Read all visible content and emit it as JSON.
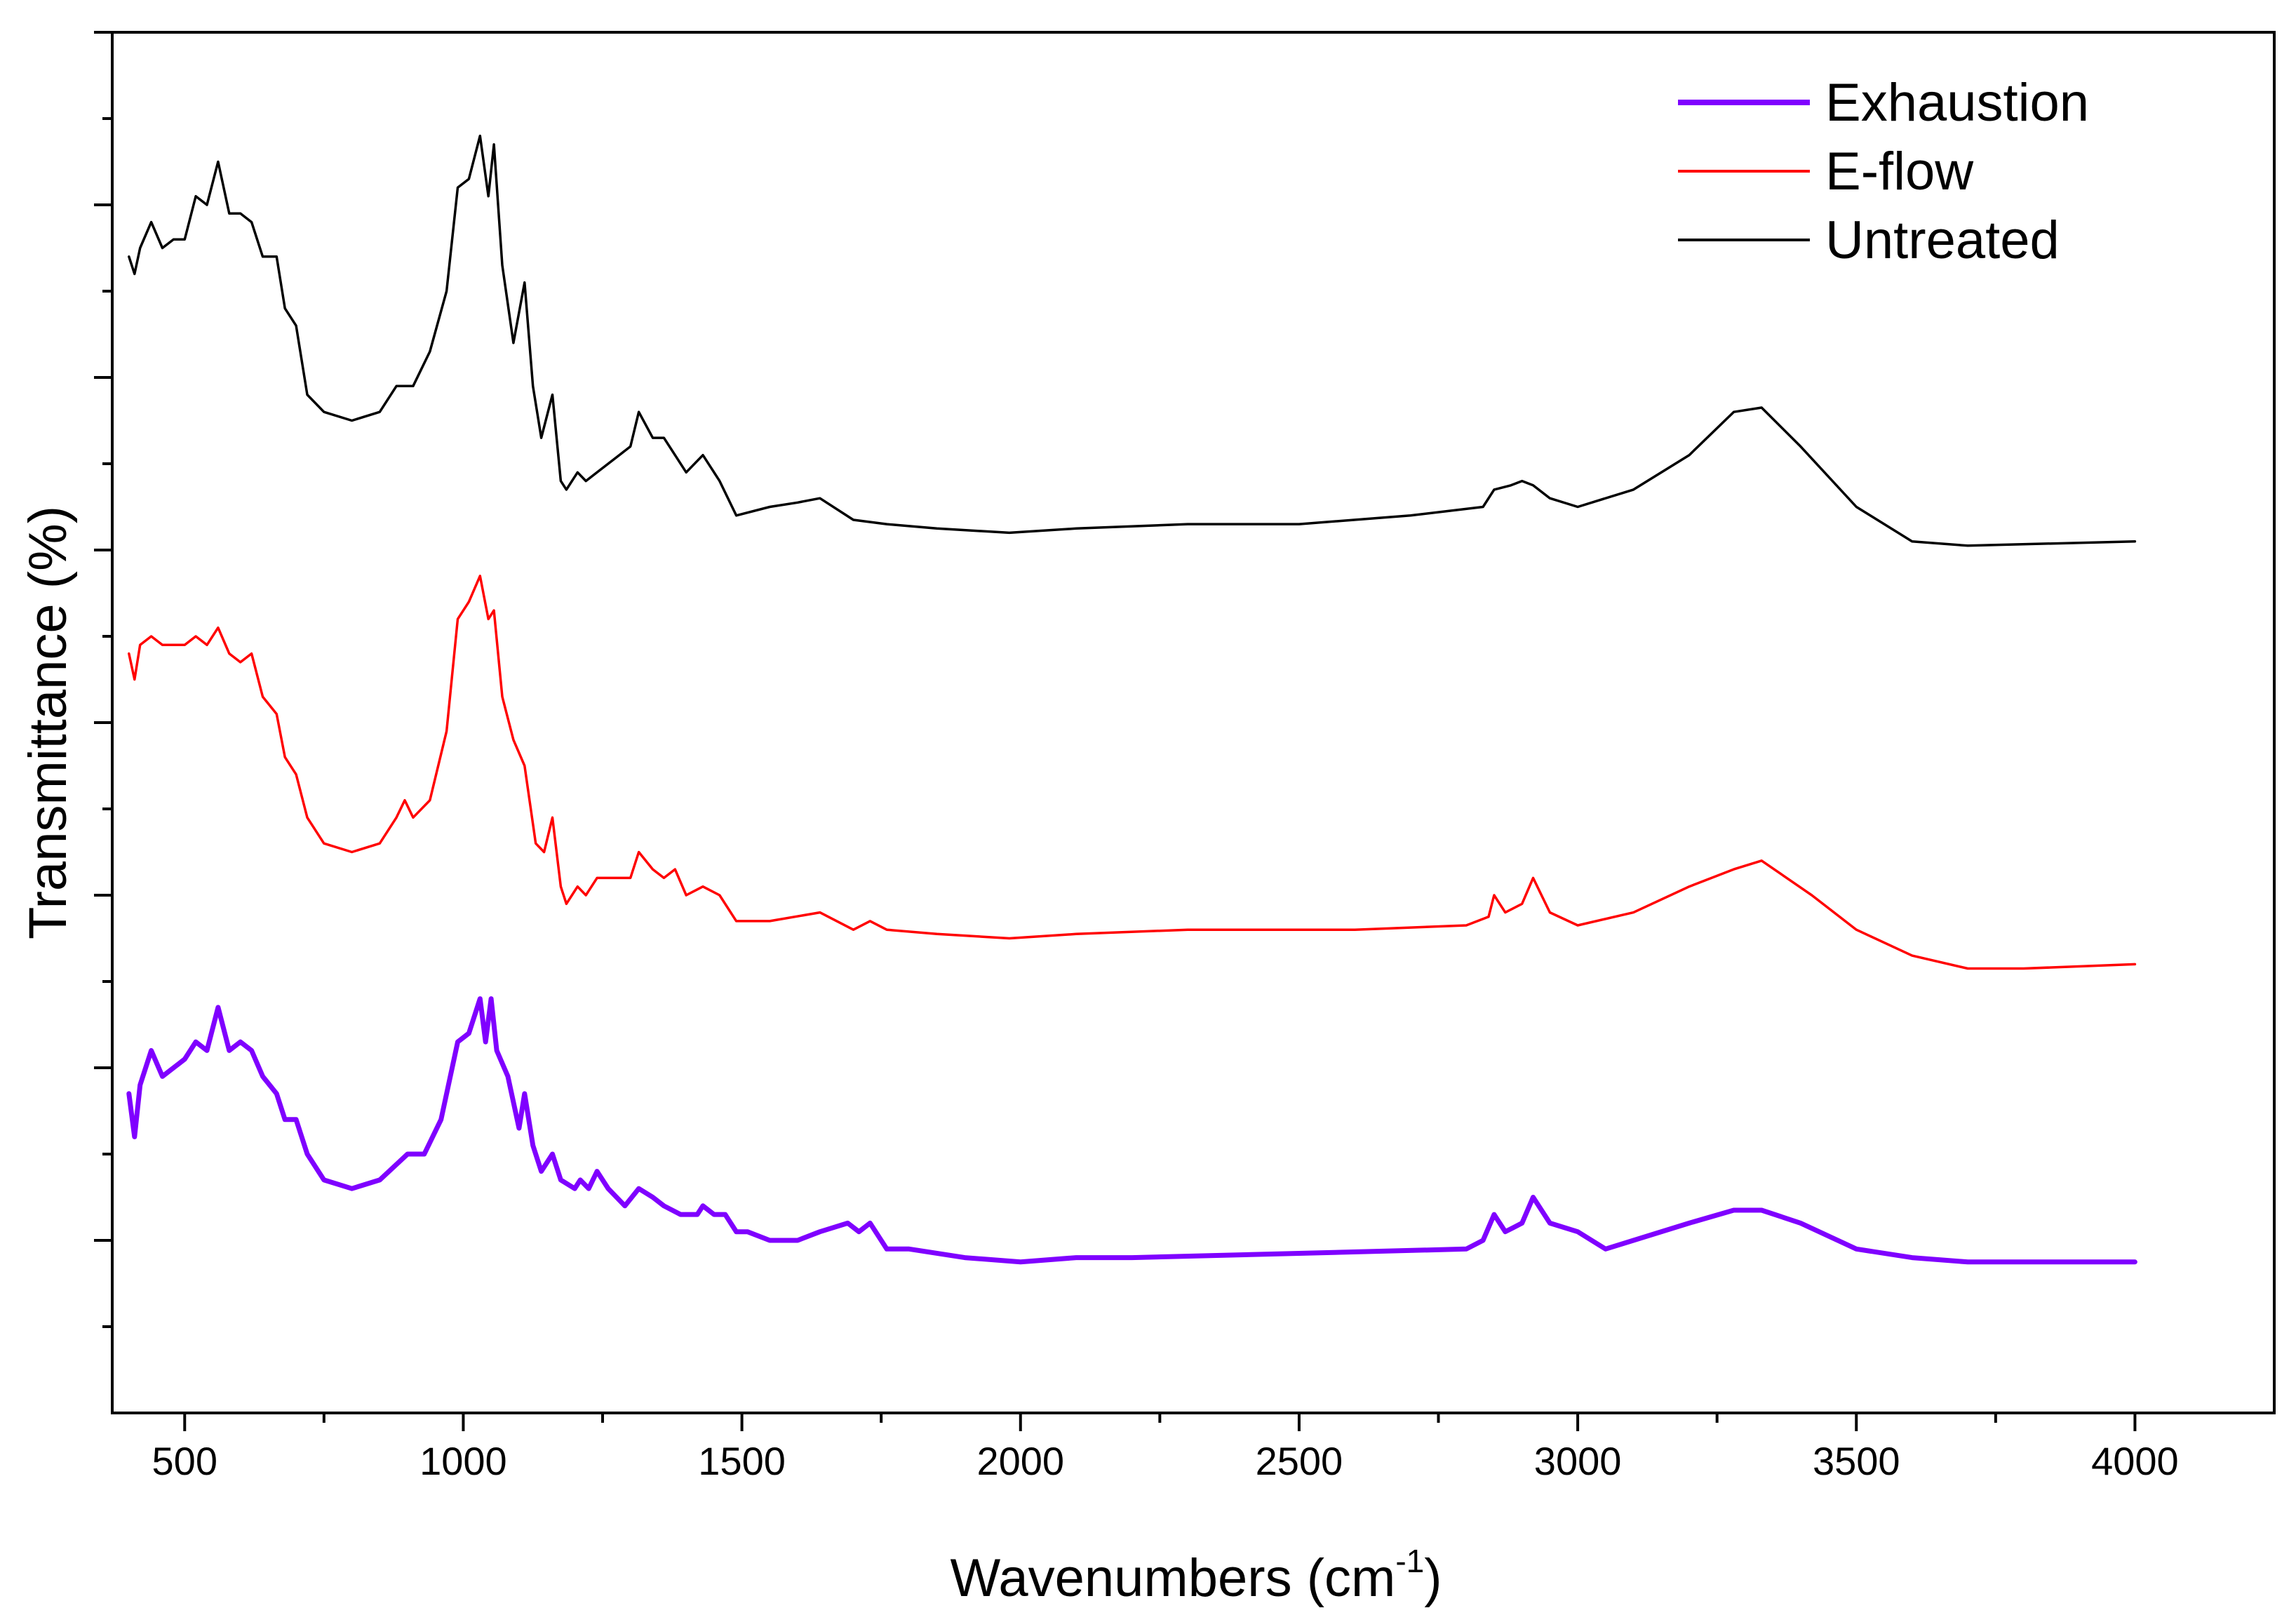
{
  "chart_data": {
    "type": "line",
    "title": "",
    "xlabel": "Wavenumbers (cm",
    "xlabel_sup": "-1",
    "xlabel_close": ")",
    "ylabel": "Transmittance (%)",
    "xlim": [
      370,
      4250
    ],
    "ylim": [
      0,
      16
    ],
    "x_ticks": [
      500,
      1000,
      1500,
      2000,
      2500,
      3000,
      3500,
      4000
    ],
    "y_ticks_major": [
      2,
      4,
      6,
      8,
      10,
      12,
      14,
      16
    ],
    "y_tick_labels_shown": false,
    "grid": false,
    "legend_position": "top-right",
    "series": [
      {
        "name": "Exhaustion",
        "color": "#7f00ff",
        "points": [
          [
            400,
            3.7
          ],
          [
            410,
            3.2
          ],
          [
            420,
            3.8
          ],
          [
            440,
            4.2
          ],
          [
            460,
            3.9
          ],
          [
            480,
            4.0
          ],
          [
            500,
            4.1
          ],
          [
            520,
            4.3
          ],
          [
            540,
            4.2
          ],
          [
            560,
            4.7
          ],
          [
            580,
            4.2
          ],
          [
            600,
            4.3
          ],
          [
            620,
            4.2
          ],
          [
            640,
            3.9
          ],
          [
            665,
            3.7
          ],
          [
            680,
            3.4
          ],
          [
            700,
            3.4
          ],
          [
            720,
            3.0
          ],
          [
            750,
            2.7
          ],
          [
            800,
            2.6
          ],
          [
            850,
            2.7
          ],
          [
            900,
            3.0
          ],
          [
            930,
            3.0
          ],
          [
            960,
            3.4
          ],
          [
            990,
            4.3
          ],
          [
            1010,
            4.4
          ],
          [
            1030,
            4.8
          ],
          [
            1040,
            4.3
          ],
          [
            1050,
            4.8
          ],
          [
            1060,
            4.2
          ],
          [
            1080,
            3.9
          ],
          [
            1100,
            3.3
          ],
          [
            1110,
            3.7
          ],
          [
            1125,
            3.1
          ],
          [
            1140,
            2.8
          ],
          [
            1160,
            3.0
          ],
          [
            1175,
            2.7
          ],
          [
            1200,
            2.6
          ],
          [
            1210,
            2.7
          ],
          [
            1225,
            2.6
          ],
          [
            1240,
            2.8
          ],
          [
            1260,
            2.6
          ],
          [
            1290,
            2.4
          ],
          [
            1315,
            2.6
          ],
          [
            1340,
            2.5
          ],
          [
            1360,
            2.4
          ],
          [
            1390,
            2.3
          ],
          [
            1420,
            2.3
          ],
          [
            1430,
            2.4
          ],
          [
            1450,
            2.3
          ],
          [
            1470,
            2.3
          ],
          [
            1490,
            2.1
          ],
          [
            1510,
            2.1
          ],
          [
            1550,
            2.0
          ],
          [
            1600,
            2.0
          ],
          [
            1640,
            2.1
          ],
          [
            1690,
            2.2
          ],
          [
            1710,
            2.1
          ],
          [
            1730,
            2.2
          ],
          [
            1760,
            1.9
          ],
          [
            1800,
            1.9
          ],
          [
            1900,
            1.8
          ],
          [
            2000,
            1.75
          ],
          [
            2100,
            1.8
          ],
          [
            2200,
            1.8
          ],
          [
            2500,
            1.85
          ],
          [
            2800,
            1.9
          ],
          [
            2830,
            2.0
          ],
          [
            2850,
            2.3
          ],
          [
            2870,
            2.1
          ],
          [
            2900,
            2.2
          ],
          [
            2920,
            2.5
          ],
          [
            2950,
            2.2
          ],
          [
            3000,
            2.1
          ],
          [
            3050,
            1.9
          ],
          [
            3100,
            2.0
          ],
          [
            3200,
            2.2
          ],
          [
            3280,
            2.35
          ],
          [
            3330,
            2.35
          ],
          [
            3400,
            2.2
          ],
          [
            3500,
            1.9
          ],
          [
            3600,
            1.8
          ],
          [
            3700,
            1.75
          ],
          [
            3800,
            1.75
          ],
          [
            4000,
            1.75
          ]
        ]
      },
      {
        "name": "E-flow",
        "color": "#ff0000",
        "points": [
          [
            400,
            8.8
          ],
          [
            410,
            8.5
          ],
          [
            420,
            8.9
          ],
          [
            440,
            9.0
          ],
          [
            460,
            8.9
          ],
          [
            480,
            8.9
          ],
          [
            500,
            8.9
          ],
          [
            520,
            9.0
          ],
          [
            540,
            8.9
          ],
          [
            560,
            9.1
          ],
          [
            580,
            8.8
          ],
          [
            600,
            8.7
          ],
          [
            620,
            8.8
          ],
          [
            640,
            8.3
          ],
          [
            665,
            8.1
          ],
          [
            680,
            7.6
          ],
          [
            700,
            7.4
          ],
          [
            720,
            6.9
          ],
          [
            750,
            6.6
          ],
          [
            800,
            6.5
          ],
          [
            850,
            6.6
          ],
          [
            880,
            6.9
          ],
          [
            895,
            7.1
          ],
          [
            910,
            6.9
          ],
          [
            940,
            7.1
          ],
          [
            970,
            7.9
          ],
          [
            990,
            9.2
          ],
          [
            1010,
            9.4
          ],
          [
            1030,
            9.7
          ],
          [
            1045,
            9.2
          ],
          [
            1055,
            9.3
          ],
          [
            1070,
            8.3
          ],
          [
            1090,
            7.8
          ],
          [
            1110,
            7.5
          ],
          [
            1130,
            6.6
          ],
          [
            1145,
            6.5
          ],
          [
            1160,
            6.9
          ],
          [
            1175,
            6.1
          ],
          [
            1185,
            5.9
          ],
          [
            1205,
            6.1
          ],
          [
            1220,
            6.0
          ],
          [
            1240,
            6.2
          ],
          [
            1280,
            6.2
          ],
          [
            1300,
            6.2
          ],
          [
            1315,
            6.5
          ],
          [
            1340,
            6.3
          ],
          [
            1360,
            6.2
          ],
          [
            1380,
            6.3
          ],
          [
            1400,
            6.0
          ],
          [
            1430,
            6.1
          ],
          [
            1460,
            6.0
          ],
          [
            1490,
            5.7
          ],
          [
            1550,
            5.7
          ],
          [
            1640,
            5.8
          ],
          [
            1700,
            5.6
          ],
          [
            1730,
            5.7
          ],
          [
            1760,
            5.6
          ],
          [
            1850,
            5.55
          ],
          [
            1980,
            5.5
          ],
          [
            2100,
            5.55
          ],
          [
            2300,
            5.6
          ],
          [
            2600,
            5.6
          ],
          [
            2800,
            5.65
          ],
          [
            2840,
            5.75
          ],
          [
            2850,
            6.0
          ],
          [
            2870,
            5.8
          ],
          [
            2900,
            5.9
          ],
          [
            2920,
            6.2
          ],
          [
            2950,
            5.8
          ],
          [
            3000,
            5.65
          ],
          [
            3100,
            5.8
          ],
          [
            3200,
            6.1
          ],
          [
            3280,
            6.3
          ],
          [
            3330,
            6.4
          ],
          [
            3420,
            6.0
          ],
          [
            3500,
            5.6
          ],
          [
            3600,
            5.3
          ],
          [
            3700,
            5.15
          ],
          [
            3800,
            5.15
          ],
          [
            4000,
            5.2
          ]
        ]
      },
      {
        "name": "Untreated",
        "color": "#000000",
        "points": [
          [
            400,
            13.4
          ],
          [
            410,
            13.2
          ],
          [
            420,
            13.5
          ],
          [
            440,
            13.8
          ],
          [
            460,
            13.5
          ],
          [
            480,
            13.6
          ],
          [
            500,
            13.6
          ],
          [
            520,
            14.1
          ],
          [
            540,
            14.0
          ],
          [
            560,
            14.5
          ],
          [
            580,
            13.9
          ],
          [
            600,
            13.9
          ],
          [
            620,
            13.8
          ],
          [
            640,
            13.4
          ],
          [
            665,
            13.4
          ],
          [
            680,
            12.8
          ],
          [
            700,
            12.6
          ],
          [
            720,
            11.8
          ],
          [
            750,
            11.6
          ],
          [
            800,
            11.5
          ],
          [
            850,
            11.6
          ],
          [
            880,
            11.9
          ],
          [
            895,
            11.9
          ],
          [
            910,
            11.9
          ],
          [
            940,
            12.3
          ],
          [
            970,
            13.0
          ],
          [
            990,
            14.2
          ],
          [
            1010,
            14.3
          ],
          [
            1030,
            14.8
          ],
          [
            1045,
            14.1
          ],
          [
            1055,
            14.7
          ],
          [
            1070,
            13.3
          ],
          [
            1090,
            12.4
          ],
          [
            1110,
            13.1
          ],
          [
            1125,
            11.9
          ],
          [
            1140,
            11.3
          ],
          [
            1160,
            11.8
          ],
          [
            1175,
            10.8
          ],
          [
            1185,
            10.7
          ],
          [
            1205,
            10.9
          ],
          [
            1220,
            10.8
          ],
          [
            1240,
            10.9
          ],
          [
            1280,
            11.1
          ],
          [
            1300,
            11.2
          ],
          [
            1315,
            11.6
          ],
          [
            1340,
            11.3
          ],
          [
            1360,
            11.3
          ],
          [
            1380,
            11.1
          ],
          [
            1400,
            10.9
          ],
          [
            1430,
            11.1
          ],
          [
            1460,
            10.8
          ],
          [
            1490,
            10.4
          ],
          [
            1550,
            10.5
          ],
          [
            1600,
            10.55
          ],
          [
            1640,
            10.6
          ],
          [
            1700,
            10.35
          ],
          [
            1760,
            10.3
          ],
          [
            1850,
            10.25
          ],
          [
            1980,
            10.2
          ],
          [
            2100,
            10.25
          ],
          [
            2300,
            10.3
          ],
          [
            2500,
            10.3
          ],
          [
            2700,
            10.4
          ],
          [
            2830,
            10.5
          ],
          [
            2850,
            10.7
          ],
          [
            2880,
            10.75
          ],
          [
            2900,
            10.8
          ],
          [
            2920,
            10.75
          ],
          [
            2950,
            10.6
          ],
          [
            3000,
            10.5
          ],
          [
            3100,
            10.7
          ],
          [
            3200,
            11.1
          ],
          [
            3280,
            11.6
          ],
          [
            3330,
            11.65
          ],
          [
            3400,
            11.2
          ],
          [
            3500,
            10.5
          ],
          [
            3600,
            10.1
          ],
          [
            3700,
            10.05
          ],
          [
            4000,
            10.1
          ]
        ]
      }
    ]
  }
}
